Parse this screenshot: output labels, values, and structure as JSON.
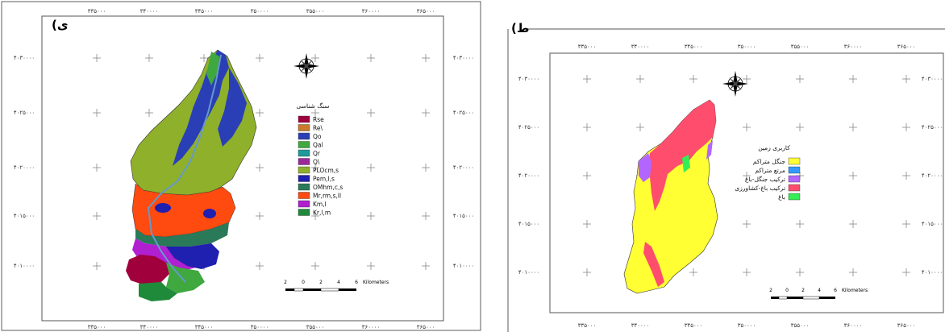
{
  "panel_left": {
    "label": "(ی",
    "x_ticks": [
      "۳۳۵۰۰۰",
      "۳۴۰۰۰۰",
      "۳۴۵۰۰۰",
      "۳۵۰۰۰۰",
      "۳۵۵۰۰۰",
      "۳۶۰۰۰۰",
      "۳۶۵۰۰۰"
    ],
    "y_ticks": [
      "۴۰۳۰۰۰۰",
      "۴۰۲۵۰۰۰",
      "۴۰۲۰۰۰۰",
      "۴۰۱۵۰۰۰",
      "۴۰۱۰۰۰۰"
    ],
    "legend_title": "سنگ شناسی",
    "legend": [
      {
        "label": "Rse",
        "color": "#a0003c"
      },
      {
        "label": "Re\\",
        "color": "#c97a2a"
      },
      {
        "label": "Qo",
        "color": "#2a3fb5"
      },
      {
        "label": "Qal",
        "color": "#3fa83f"
      },
      {
        "label": "Qr",
        "color": "#1e9a9a"
      },
      {
        "label": "Q\\",
        "color": "#9a2a9a"
      },
      {
        "label": "PLOcm,s",
        "color": "#8fb02a"
      },
      {
        "label": "Pem,l,s",
        "color": "#1f1fb0"
      },
      {
        "label": "OMhm,c,s",
        "color": "#2a7a5a"
      },
      {
        "label": "Mr,rm,s,ll",
        "color": "#ff4a10"
      },
      {
        "label": "Km,l",
        "color": "#b01fd0"
      },
      {
        "label": "Kr,l,m",
        "color": "#1f8a3a"
      }
    ],
    "scale_labels": [
      "2",
      "0",
      "2",
      "4",
      "6",
      "Kilometers"
    ]
  },
  "panel_right": {
    "label": "(ط",
    "x_ticks": [
      "۳۳۵۰۰۰",
      "۳۴۰۰۰۰",
      "۳۴۵۰۰۰",
      "۳۵۰۰۰۰",
      "۳۵۵۰۰۰",
      "۳۶۰۰۰۰",
      "۳۶۵۰۰۰"
    ],
    "y_ticks": [
      "۴۰۳۰۰۰۰",
      "۴۰۲۵۰۰۰",
      "۴۰۲۰۰۰۰",
      "۴۰۱۵۰۰۰",
      "۴۰۱۰۰۰۰"
    ],
    "legend_title": "کاربری زمین",
    "legend": [
      {
        "label": "جنگل متراکم",
        "color": "#ffff33"
      },
      {
        "label": "مرتع متراکم",
        "color": "#3399ff"
      },
      {
        "label": "ترکیب جنگل-باغ",
        "color": "#b366ff"
      },
      {
        "label": "ترکیب باغ-کشاورزی",
        "color": "#ff4d6d"
      },
      {
        "label": "باغ",
        "color": "#33ee55"
      }
    ],
    "scale_labels": [
      "2",
      "0",
      "2",
      "4",
      "6",
      "Kilometers"
    ]
  }
}
